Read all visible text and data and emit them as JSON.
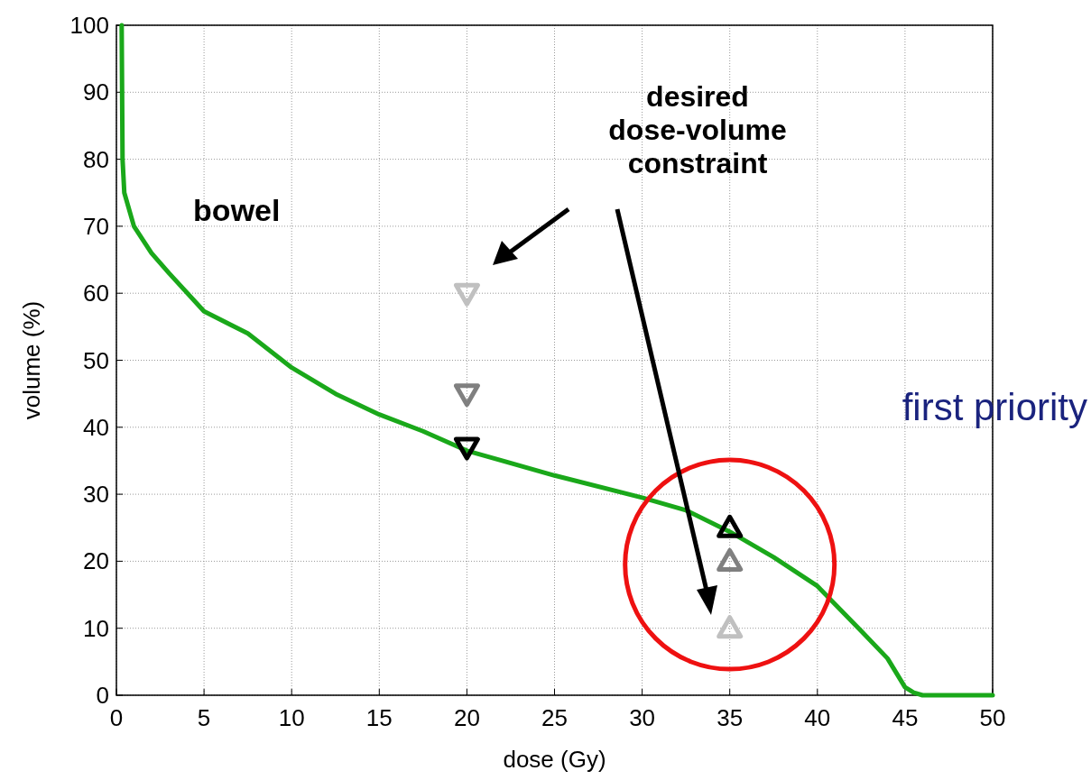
{
  "chart_data": {
    "type": "line",
    "xlabel": "dose (Gy)",
    "ylabel": "volume (%)",
    "xlim": [
      0,
      50
    ],
    "ylim": [
      0,
      100
    ],
    "xticks": [
      0,
      5,
      10,
      15,
      20,
      25,
      30,
      35,
      40,
      45,
      50
    ],
    "yticks": [
      0,
      10,
      20,
      30,
      40,
      50,
      60,
      70,
      80,
      90,
      100
    ],
    "grid": true,
    "line_style": "solid",
    "series": [
      {
        "name": "bowel",
        "color": "#1aa81a",
        "x": [
          0.3,
          0.35,
          0.45,
          1,
          2,
          3,
          5,
          7.5,
          10,
          12.5,
          15,
          17.5,
          20,
          25,
          30,
          32.5,
          35,
          37.5,
          40,
          42.5,
          44,
          45,
          45.5,
          46,
          50
        ],
        "values": [
          100,
          80,
          75,
          70,
          66,
          63,
          57.3,
          54,
          48.9,
          45,
          41.9,
          39.4,
          36.5,
          32.8,
          29.5,
          27.6,
          24.4,
          20.6,
          16.3,
          9.6,
          5.5,
          1.2,
          0.4,
          0,
          0
        ]
      },
      {
        "type": "scatter",
        "color": "#c0c0c0",
        "marker": "triangle-down",
        "x": [
          20
        ],
        "values": [
          60
        ]
      },
      {
        "type": "scatter",
        "color": "#808080",
        "marker": "triangle-down",
        "x": [
          20
        ],
        "values": [
          45
        ]
      },
      {
        "type": "scatter",
        "color": "#000000",
        "marker": "triangle-down",
        "x": [
          20
        ],
        "values": [
          37
        ]
      },
      {
        "type": "scatter",
        "color": "#000000",
        "marker": "triangle",
        "x": [
          35
        ],
        "values": [
          25
        ]
      },
      {
        "type": "scatter",
        "color": "#808080",
        "marker": "triangle",
        "x": [
          35
        ],
        "values": [
          20
        ]
      },
      {
        "type": "scatter",
        "color": "#c0c0c0",
        "marker": "triangle",
        "x": [
          35
        ],
        "values": [
          10
        ]
      }
    ],
    "annotations": [
      "desired\ndose-volume\nconstraint",
      "first priority"
    ]
  }
}
